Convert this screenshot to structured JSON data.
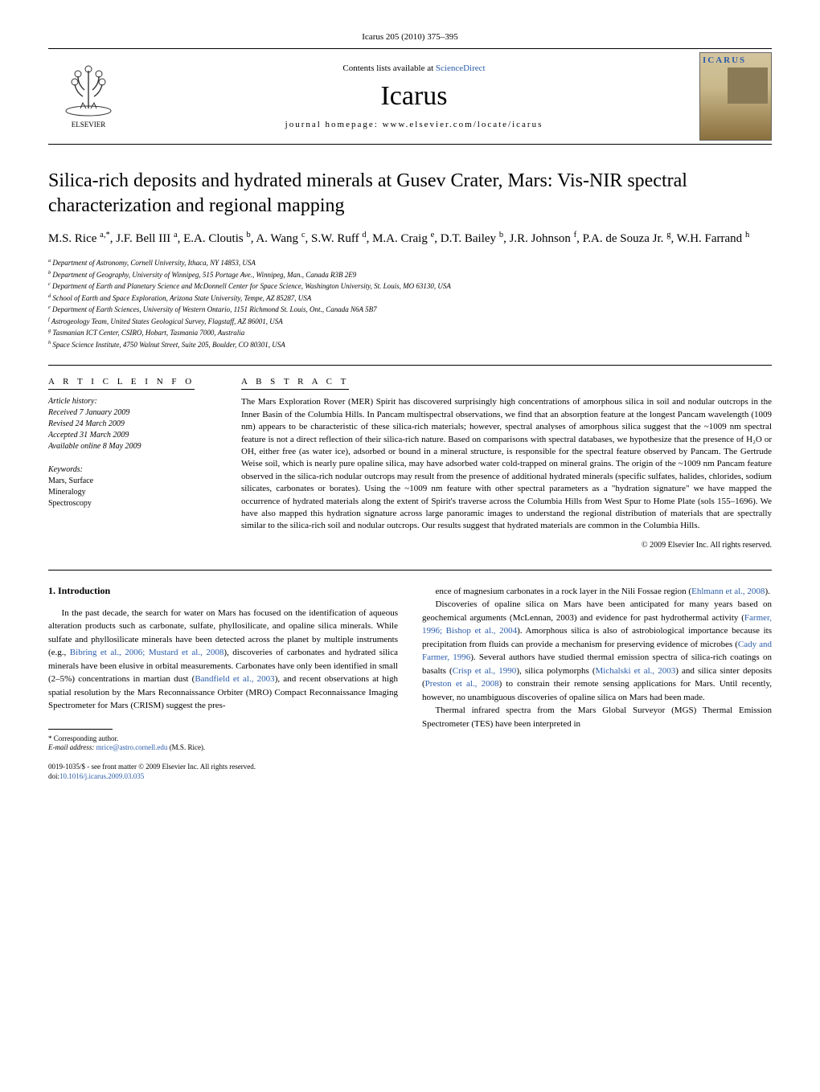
{
  "citation": "Icarus 205 (2010) 375–395",
  "banner": {
    "contentsPrefix": "Contents lists available at ",
    "contentsLink": "ScienceDirect",
    "journalName": "Icarus",
    "homepagePrefix": "journal homepage: ",
    "homepageUrl": "www.elsevier.com/locate/icarus",
    "elsevierLabel": "ELSEVIER",
    "coverTitle": "ICARUS"
  },
  "title": "Silica-rich deposits and hydrated minerals at Gusev Crater, Mars: Vis-NIR spectral characterization and regional mapping",
  "authorsHtml": "M.S. Rice <sup>a,*</sup>, J.F. Bell III <sup>a</sup>, E.A. Cloutis <sup>b</sup>, A. Wang <sup>c</sup>, S.W. Ruff <sup>d</sup>, M.A. Craig <sup>e</sup>, D.T. Bailey <sup>b</sup>, J.R. Johnson <sup>f</sup>, P.A. de Souza Jr. <sup>g</sup>, W.H. Farrand <sup>h</sup>",
  "affiliations": [
    "a Department of Astronomy, Cornell University, Ithaca, NY 14853, USA",
    "b Department of Geography, University of Winnipeg, 515 Portage Ave., Winnipeg, Man., Canada R3B 2E9",
    "c Department of Earth and Planetary Science and McDonnell Center for Space Science, Washington University, St. Louis, MO 63130, USA",
    "d School of Earth and Space Exploration, Arizona State University, Tempe, AZ 85287, USA",
    "e Department of Earth Sciences, University of Western Ontario, 1151 Richmond St. Louis, Ont., Canada N6A 5B7",
    "f Astrogeology Team, United States Geological Survey, Flagstaff, AZ 86001, USA",
    "g Tasmanian ICT Center, CSIRO, Hobart, Tasmania 7000, Australia",
    "h Space Science Institute, 4750 Walnut Street, Suite 205, Boulder, CO 80301, USA"
  ],
  "articleInfo": {
    "heading": "A R T I C L E   I N F O",
    "historyLabel": "Article history:",
    "history": [
      "Received 7 January 2009",
      "Revised 24 March 2009",
      "Accepted 31 March 2009",
      "Available online 8 May 2009"
    ],
    "keywordsLabel": "Keywords:",
    "keywords": [
      "Mars, Surface",
      "Mineralogy",
      "Spectroscopy"
    ]
  },
  "abstract": {
    "heading": "A B S T R A C T",
    "text": "The Mars Exploration Rover (MER) Spirit has discovered surprisingly high concentrations of amorphous silica in soil and nodular outcrops in the Inner Basin of the Columbia Hills. In Pancam multispectral observations, we find that an absorption feature at the longest Pancam wavelength (1009 nm) appears to be characteristic of these silica-rich materials; however, spectral analyses of amorphous silica suggest that the ~1009 nm spectral feature is not a direct reflection of their silica-rich nature. Based on comparisons with spectral databases, we hypothesize that the presence of H₂O or OH, either free (as water ice), adsorbed or bound in a mineral structure, is responsible for the spectral feature observed by Pancam. The Gertrude Weise soil, which is nearly pure opaline silica, may have adsorbed water cold-trapped on mineral grains. The origin of the ~1009 nm Pancam feature observed in the silica-rich nodular outcrops may result from the presence of additional hydrated minerals (specific sulfates, halides, chlorides, sodium silicates, carbonates or borates). Using the ~1009 nm feature with other spectral parameters as a \"hydration signature\" we have mapped the occurrence of hydrated materials along the extent of Spirit's traverse across the Columbia Hills from West Spur to Home Plate (sols 155–1696). We have also mapped this hydration signature across large panoramic images to understand the regional distribution of materials that are spectrally similar to the silica-rich soil and nodular outcrops. Our results suggest that hydrated materials are common in the Columbia Hills.",
    "copyright": "© 2009 Elsevier Inc. All rights reserved."
  },
  "intro": {
    "heading": "1. Introduction",
    "leftParas": [
      "In the past decade, the search for water on Mars has focused on the identification of aqueous alteration products such as carbonate, sulfate, phyllosilicate, and opaline silica minerals. While sulfate and phyllosilicate minerals have been detected across the planet by multiple instruments (e.g., Bibring et al., 2006; Mustard et al., 2008), discoveries of carbonates and hydrated silica minerals have been elusive in orbital measurements. Carbonates have only been identified in small (2–5%) concentrations in martian dust (Bandfield et al., 2003), and recent observations at high spatial resolution by the Mars Reconnaissance Orbiter (MRO) Compact Reconnaissance Imaging Spectrometer for Mars (CRISM) suggest the pres-"
    ],
    "rightParas": [
      "ence of magnesium carbonates in a rock layer in the Nili Fossae region (Ehlmann et al., 2008).",
      "Discoveries of opaline silica on Mars have been anticipated for many years based on geochemical arguments (McLennan, 2003) and evidence for past hydrothermal activity (Farmer, 1996; Bishop et al., 2004). Amorphous silica is also of astrobiological importance because its precipitation from fluids can provide a mechanism for preserving evidence of microbes (Cady and Farmer, 1996). Several authors have studied thermal emission spectra of silica-rich coatings on basalts (Crisp et al., 1990), silica polymorphs (Michalski et al., 2003) and silica sinter deposits (Preston et al., 2008) to constrain their remote sensing applications for Mars. Until recently, however, no unambiguous discoveries of opaline silica on Mars had been made.",
      "Thermal infrared spectra from the Mars Global Surveyor (MGS) Thermal Emission Spectrometer (TES) have been interpreted in"
    ]
  },
  "footnote": {
    "corresponding": "* Corresponding author.",
    "emailLabel": "E-mail address: ",
    "email": "mrice@astro.cornell.edu",
    "emailSuffix": " (M.S. Rice)."
  },
  "bottom": {
    "issn": "0019-1035/$ - see front matter © 2009 Elsevier Inc. All rights reserved.",
    "doiPrefix": "doi:",
    "doi": "10.1016/j.icarus.2009.03.035"
  }
}
